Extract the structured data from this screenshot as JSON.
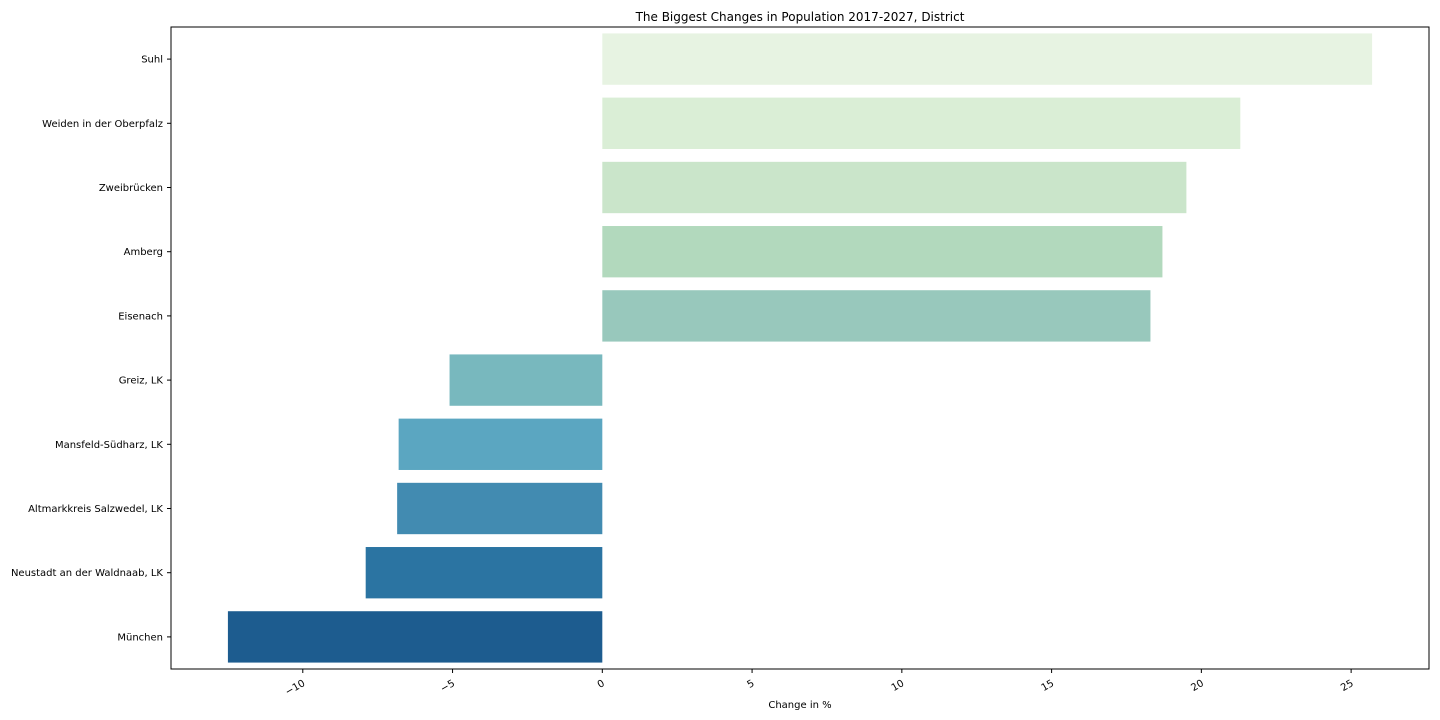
{
  "chart_data": {
    "type": "bar",
    "orientation": "horizontal",
    "title": "The Biggest Changes in Population 2017-2027, District",
    "xlabel": "Change in %",
    "ylabel": "",
    "categories": [
      "Suhl",
      "Weiden in der Oberpfalz",
      "Zweibrücken",
      "Amberg",
      "Eisenach",
      "Greiz, LK",
      "Mansfeld-Südharz, LK",
      "Altmarkkreis Salzwedel, LK",
      "Neustadt an der Waldnaab, LK",
      "München"
    ],
    "values": [
      25.7,
      21.3,
      19.5,
      18.7,
      18.3,
      -5.1,
      -6.8,
      -6.85,
      -7.9,
      -12.5
    ],
    "colors": [
      "#e7f3e2",
      "#daeed6",
      "#cae5ca",
      "#b2d9bd",
      "#98c8bc",
      "#78b8be",
      "#5ba6c1",
      "#428bb1",
      "#2b74a2",
      "#1d5c8f"
    ],
    "xlim": [
      -14.4,
      27.6
    ],
    "xticks": [
      -10,
      -5,
      0,
      5,
      10,
      15,
      20,
      25
    ],
    "xtick_labels": [
      "−10",
      "−5",
      "0",
      "5",
      "10",
      "15",
      "20",
      "25"
    ],
    "grid": false,
    "legend": "none"
  }
}
